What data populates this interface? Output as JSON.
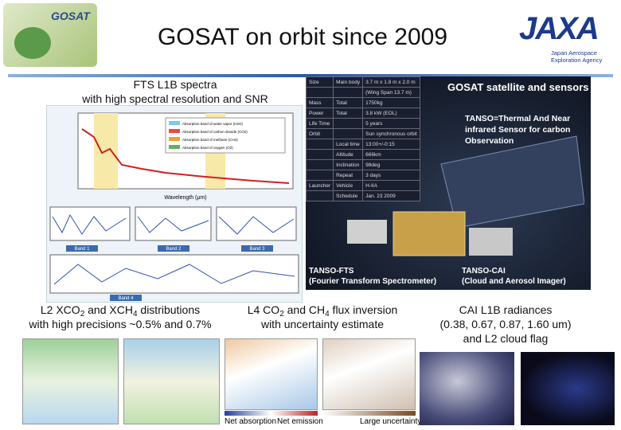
{
  "header": {
    "logo_text": "GOSAT",
    "title": "GOSAT on orbit since 2009",
    "agency_logo": "JAXA",
    "agency_name": [
      "Japan Aerospace",
      "Exploration Agency"
    ]
  },
  "fts_panel": {
    "caption": [
      "FTS L1B spectra",
      "with high spectral resolution and SNR"
    ],
    "wavelength_label": "Wavelength (μm)",
    "legend": [
      "Absorption band of water vapor (H2O)",
      "Absorption band of carbon dioxide (CO2)",
      "Absorption band of methane (CH4)",
      "Absorption band of oxygen (O2)"
    ],
    "bands": [
      "Band 1",
      "Band 2",
      "Band 3",
      "Band 4"
    ]
  },
  "satellite_panel": {
    "title": "GOSAT satellite and sensors",
    "tanso": [
      "TANSO=Thermal And Near",
      "infrared Sensor for carbon",
      "Observation"
    ],
    "fts": [
      "TANSO-FTS",
      "(Fourier Transform Spectrometer)"
    ],
    "cai": [
      "TANSO-CAI",
      "(Cloud and Aerosol Imager)"
    ],
    "table": {
      "rows": [
        [
          "Size",
          "Main body",
          "3.7 m x 1.8 m x 2.0 m"
        ],
        [
          "",
          "",
          "(Wing Span 13.7 m)"
        ],
        [
          "Mass",
          "Total",
          "1750kg"
        ],
        [
          "Power",
          "Total",
          "3.8 kW (EOL)"
        ],
        [
          "Life Time",
          "",
          "5 years"
        ],
        [
          "Orbit",
          "",
          "Sun synchronous orbit"
        ],
        [
          "",
          "Local time",
          "13:00+/-0:15"
        ],
        [
          "",
          "Altitude",
          "666km"
        ],
        [
          "",
          "Inclination",
          "98deg"
        ],
        [
          "",
          "Repeat",
          "3 days"
        ],
        [
          "Launcher",
          "Vehicle",
          "H-IIA"
        ],
        [
          "",
          "Schedule",
          "Jan. 23 2009"
        ]
      ]
    }
  },
  "l2_caption": {
    "line1": [
      "L2 XCO",
      "2",
      " and XCH",
      "4",
      " distributions"
    ],
    "line2": "with high precisions ~0.5% and 0.7%"
  },
  "l4_caption": {
    "line1": [
      "L4 CO",
      "2",
      " and CH",
      "4",
      " flux inversion"
    ],
    "line2": "with uncertainty estimate",
    "scale_labels": [
      "Net absorption",
      "Net emission",
      "Large uncertainty"
    ]
  },
  "cai_caption": [
    "CAI L1B radiances",
    "(0.38, 0.67, 0.87, 1.60 um)",
    "and L2 cloud flag"
  ]
}
